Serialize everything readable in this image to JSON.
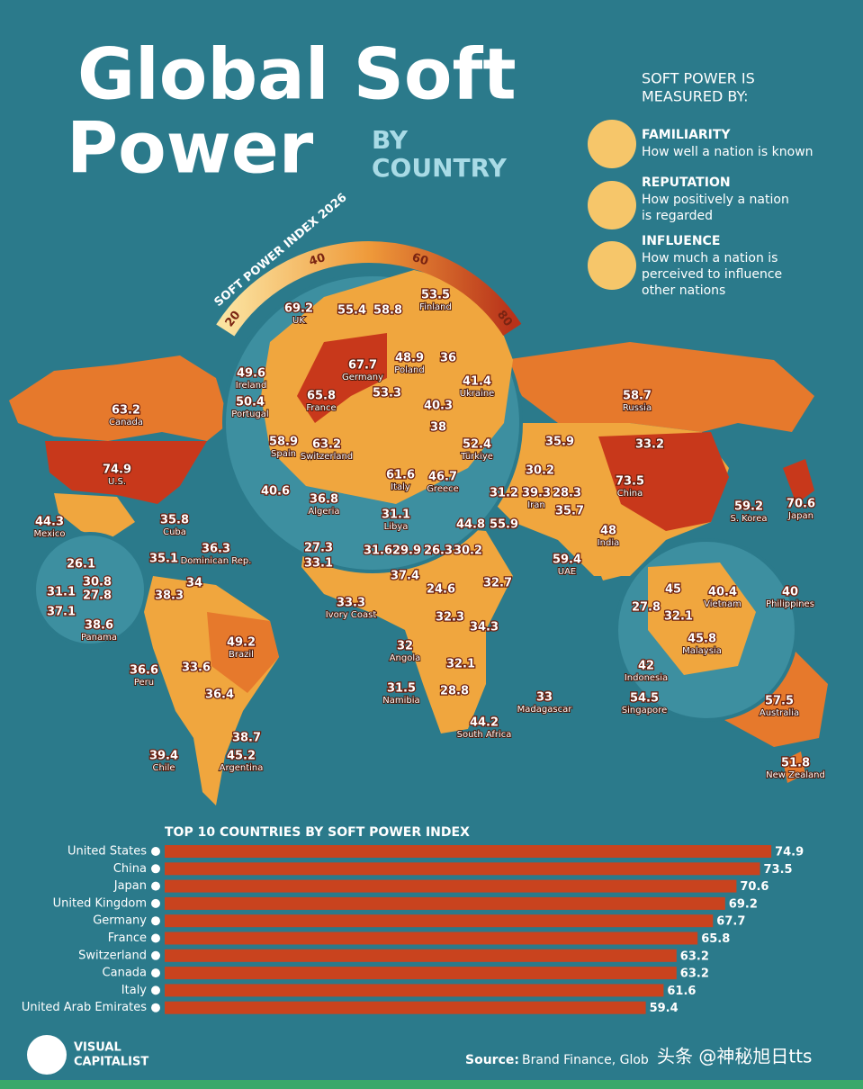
{
  "header": {
    "title_line1": "Global Soft",
    "title_line2": "Power",
    "subtitle_line1": "BY",
    "subtitle_line2": "COUNTRY"
  },
  "legend": {
    "heading_line1": "SOFT POWER IS",
    "heading_line2": "MEASURED BY:",
    "items": [
      {
        "title": "FAMILIARITY",
        "lines": [
          "How well a nation is known"
        ]
      },
      {
        "title": "REPUTATION",
        "lines": [
          "How positively a nation",
          "is regarded"
        ]
      },
      {
        "title": "INFLUENCE",
        "lines": [
          "How much a nation is",
          "perceived to influence",
          "other nations"
        ]
      }
    ]
  },
  "gauge": {
    "title": "SOFT POWER INDEX 2026",
    "ticks": [
      20,
      40,
      60,
      80
    ]
  },
  "map_labels": [
    {
      "value": 69.2,
      "name": "UK"
    },
    {
      "value": 49.6,
      "name": "Ireland"
    },
    {
      "value": 50.4,
      "name": "Portugal"
    },
    {
      "value": 65.8,
      "name": "France"
    },
    {
      "value": 58.9,
      "name": "Spain"
    },
    {
      "value": 63.2,
      "name": "Switzerland"
    },
    {
      "value": 67.7,
      "name": "Germany"
    },
    {
      "value": 48.9,
      "name": "Poland"
    },
    {
      "value": 53.5,
      "name": "Finland"
    },
    {
      "value": 41.4,
      "name": "Ukraine"
    },
    {
      "value": 61.6,
      "name": "Italy"
    },
    {
      "value": 46.7,
      "name": "Greece"
    },
    {
      "value": 36.8,
      "name": "Algeria"
    },
    {
      "value": 31.1,
      "name": "Libya"
    },
    {
      "value": 52.4,
      "name": "Türkiye"
    },
    {
      "value": 58.7,
      "name": "Russia"
    },
    {
      "value": 63.2,
      "name": "Canada"
    },
    {
      "value": 74.9,
      "name": "U.S."
    },
    {
      "value": 44.3,
      "name": "Mexico"
    },
    {
      "value": 35.8,
      "name": "Cuba"
    },
    {
      "value": 36.3,
      "name": "Dominican Rep."
    },
    {
      "value": 73.5,
      "name": "China"
    },
    {
      "value": 59.2,
      "name": "S. Korea"
    },
    {
      "value": 70.6,
      "name": "Japan"
    },
    {
      "value": 39.3,
      "name": "Iran"
    },
    {
      "value": 48,
      "name": "India"
    },
    {
      "value": 59.4,
      "name": "UAE"
    },
    {
      "value": 40.4,
      "name": "Vietnam"
    },
    {
      "value": 40,
      "name": "Philippines"
    },
    {
      "value": 45.8,
      "name": "Malaysia"
    },
    {
      "value": 42,
      "name": "Indonesia"
    },
    {
      "value": 54.5,
      "name": "Singapore"
    },
    {
      "value": 57.5,
      "name": "Australia"
    },
    {
      "value": 51.8,
      "name": "New Zealand"
    },
    {
      "value": 33.3,
      "name": "Ivory Coast"
    },
    {
      "value": 32,
      "name": "Angola"
    },
    {
      "value": 31.5,
      "name": "Namibia"
    },
    {
      "value": 44.2,
      "name": "South Africa"
    },
    {
      "value": 33,
      "name": "Madagascar"
    },
    {
      "value": 49.2,
      "name": "Brazil"
    },
    {
      "value": 36.6,
      "name": "Peru"
    },
    {
      "value": 39.4,
      "name": "Chile"
    },
    {
      "value": 45.2,
      "name": "Argentina"
    },
    {
      "value": 38.6,
      "name": "Panama"
    },
    {
      "value": 55.4
    },
    {
      "value": 58.8
    },
    {
      "value": 36
    },
    {
      "value": 53.3
    },
    {
      "value": 40.3
    },
    {
      "value": 38
    },
    {
      "value": 35.9
    },
    {
      "value": 33.2
    },
    {
      "value": 30.2
    },
    {
      "value": 31.2
    },
    {
      "value": 28.3
    },
    {
      "value": 35.7
    },
    {
      "value": 44.8
    },
    {
      "value": 55.9
    },
    {
      "value": 31.6
    },
    {
      "value": 29.9
    },
    {
      "value": 26.3
    },
    {
      "value": 30.2
    },
    {
      "value": 37.4
    },
    {
      "value": 24.6
    },
    {
      "value": 32.7
    },
    {
      "value": 32.3
    },
    {
      "value": 34.3
    },
    {
      "value": 32.1
    },
    {
      "value": 28.8
    },
    {
      "value": 27.3
    },
    {
      "value": 33.1
    },
    {
      "value": 45
    },
    {
      "value": 27.8
    },
    {
      "value": 32.1
    },
    {
      "value": 26.1
    },
    {
      "value": 31.1
    },
    {
      "value": 30.8
    },
    {
      "value": 27.8
    },
    {
      "value": 37.1
    },
    {
      "value": 38.3
    },
    {
      "value": 34
    },
    {
      "value": 33.6
    },
    {
      "value": 36.4
    },
    {
      "value": 38.7
    },
    {
      "value": 35.1
    },
    {
      "value": 40.6
    }
  ],
  "chart_data": {
    "type": "bar",
    "orientation": "horizontal",
    "title": "TOP 10 COUNTRIES BY SOFT POWER INDEX",
    "categories": [
      "United States",
      "China",
      "Japan",
      "United Kingdom",
      "Germany",
      "France",
      "Switzerland",
      "Canada",
      "Italy",
      "United Arab Emirates"
    ],
    "values": [
      74.9,
      73.5,
      70.6,
      69.2,
      67.7,
      65.8,
      63.2,
      63.2,
      61.6,
      59.4
    ],
    "color": "#c9431e"
  },
  "footer": {
    "brand_line1": "VISUAL",
    "brand_line2": "CAPITALIST",
    "source_label": "Source:",
    "source_text": "Brand Finance, Glob",
    "watermark": "头条 @神秘旭日tts"
  }
}
